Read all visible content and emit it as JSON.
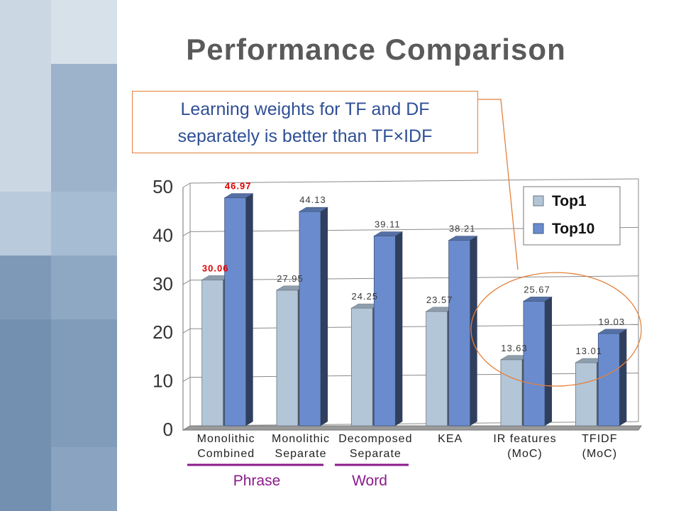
{
  "slide": {
    "title": "Performance Comparison",
    "callout": {
      "line1": "Learning weights for TF and DF",
      "line2": "separately is better than TF×IDF"
    },
    "bottom_labels": [
      {
        "text": "Phrase",
        "color": "#8b1a8b"
      },
      {
        "text": "Word",
        "color": "#8b1a8b"
      }
    ]
  },
  "colors": {
    "top1": "#b3c6d8",
    "top10": "#6a8cce",
    "highlight": "#e00000",
    "callout_border": "#e4803a",
    "ellipse": "#e4803a"
  },
  "chart_data": {
    "type": "bar",
    "title": "",
    "xlabel": "",
    "ylabel": "",
    "ylim": [
      0,
      50
    ],
    "yticks": [
      "0",
      "10",
      "20",
      "30",
      "40",
      "50"
    ],
    "categories": [
      [
        "Monolithic",
        "Combined"
      ],
      [
        "Monolithic",
        "Separate"
      ],
      [
        "Decomposed",
        "Separate"
      ],
      [
        "KEA"
      ],
      [
        "IR features",
        "(MoC)"
      ],
      [
        "TFIDF",
        "(MoC)"
      ]
    ],
    "series": [
      {
        "name": "Top1",
        "values": [
          30.06,
          27.95,
          24.25,
          23.57,
          13.63,
          13.01
        ],
        "labels": [
          "30.06",
          "27.95",
          "24.25",
          "23.57",
          "13.63",
          "13.01"
        ]
      },
      {
        "name": "Top10",
        "values": [
          46.97,
          44.13,
          39.11,
          38.21,
          25.67,
          19.03
        ],
        "labels": [
          "46.97",
          "44.13",
          "39.11",
          "38.21",
          "25.67",
          "19.03"
        ]
      }
    ],
    "highlighted_labels": [
      "30.06",
      "46.97"
    ],
    "legend_position": "top-right",
    "grid": true
  }
}
